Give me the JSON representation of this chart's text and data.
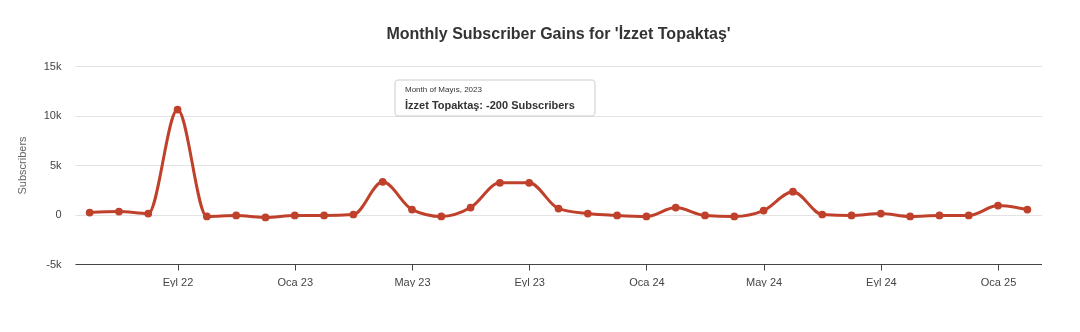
{
  "chart_data": {
    "type": "line",
    "title": "Monthly Subscriber Gains for 'İzzet Topaktaş'",
    "ylabel": "Subscribers",
    "categories": [
      null,
      null,
      null,
      "Eyl 22",
      null,
      null,
      null,
      "Oca 23",
      null,
      null,
      null,
      "May 23",
      null,
      null,
      null,
      "Eyl 23",
      null,
      null,
      null,
      "Oca 24",
      null,
      null,
      null,
      "May 24",
      null,
      null,
      null,
      "Eyl 24",
      null,
      null,
      null,
      "Oca 25",
      null
    ],
    "series": [
      {
        "color": "#c0412b",
        "values": [
          200,
          300,
          100,
          10600,
          -200,
          -100,
          -300,
          -100,
          -100,
          0,
          3300,
          500,
          -200,
          700,
          3200,
          3200,
          600,
          100,
          -100,
          -200,
          700,
          -100,
          -200,
          400,
          2300,
          0,
          -100,
          100,
          -200,
          -100,
          -100,
          900,
          500
        ]
      }
    ],
    "ylim": [
      -5000,
      15000
    ],
    "yticks": [
      {
        "value": -5000,
        "label": "-5k"
      },
      {
        "value": 0,
        "label": "0"
      },
      {
        "value": 5000,
        "label": "5k"
      },
      {
        "value": 10000,
        "label": "10k"
      },
      {
        "value": 15000,
        "label": "15k"
      }
    ],
    "grid": "y",
    "marker": "circle",
    "annotations": [
      "Month of Mayıs, 2023",
      "İzzet Topaktaş: -200 Subscribers"
    ]
  }
}
